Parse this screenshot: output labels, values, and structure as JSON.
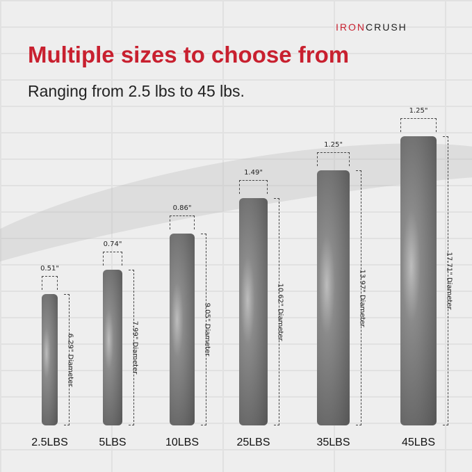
{
  "brand": {
    "part1": "IRON",
    "part2": "CRUSH",
    "logo_color": "#c8202f"
  },
  "headline": "Multiple sizes to choose from",
  "subheadline": "Ranging from 2.5 lbs to 45 lbs.",
  "accent_color": "#c8202f",
  "plates": [
    {
      "label": "2.5LBS",
      "thickness": "0.51\"",
      "diameter": "6.29\" Diameter"
    },
    {
      "label": "5LBS",
      "thickness": "0.74\"",
      "diameter": "7.99\" Diameter"
    },
    {
      "label": "10LBS",
      "thickness": "0.86\"",
      "diameter": "9.05\" Diameter"
    },
    {
      "label": "25LBS",
      "thickness": "1.49\"",
      "diameter": "10.62\" Diameter"
    },
    {
      "label": "35LBS",
      "thickness": "1.25\"",
      "diameter": "13.97\" Diameter"
    },
    {
      "label": "45LBS",
      "thickness": "1.25\"",
      "diameter": "17.71\" Diameter"
    }
  ]
}
